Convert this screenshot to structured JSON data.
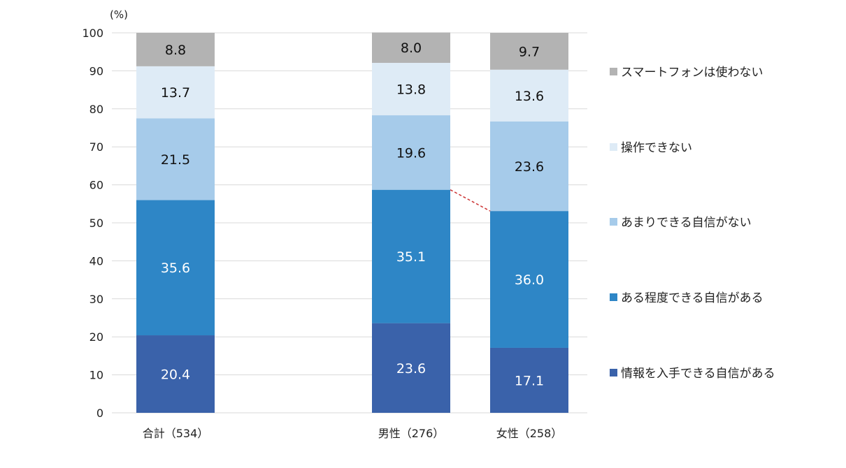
{
  "chart_data": {
    "type": "bar",
    "stacked": true,
    "unit_label": "(%)",
    "ylim": [
      0,
      100
    ],
    "yticks": [
      "0",
      "10",
      "20",
      "30",
      "40",
      "50",
      "60",
      "70",
      "80",
      "90",
      "100"
    ],
    "grid": true,
    "legend_position": "right",
    "categories": [
      "合計（534）",
      "男性（276）",
      "女性（258）"
    ],
    "series": [
      {
        "name": "情報を入手できる自信がある",
        "color": "#3a62aa",
        "label_color": "#ffffff",
        "values": [
          20.4,
          23.6,
          17.1
        ]
      },
      {
        "name": "ある程度できる自信がある",
        "color": "#2e86c6",
        "label_color": "#ffffff",
        "values": [
          35.6,
          35.1,
          36.0
        ]
      },
      {
        "name": "あまりできる自信がない",
        "color": "#a6cbea",
        "label_color": "#111111",
        "values": [
          21.5,
          19.6,
          23.6
        ]
      },
      {
        "name": "操作できない",
        "color": "#deebf6",
        "label_color": "#111111",
        "values": [
          13.7,
          13.8,
          13.6
        ]
      },
      {
        "name": "スマートフォンは使わない",
        "color": "#b3b3b3",
        "label_color": "#111111",
        "values": [
          8.8,
          8.0,
          9.7
        ]
      }
    ],
    "data_labels": [
      [
        "20.4",
        "23.6",
        "17.1"
      ],
      [
        "35.6",
        "35.1",
        "36.0"
      ],
      [
        "21.5",
        "19.6",
        "23.6"
      ],
      [
        "13.7",
        "13.8",
        "13.6"
      ],
      [
        "8.8",
        "8.0",
        "9.7"
      ]
    ],
    "annotation": {
      "type": "dashed-connector",
      "color": "#cc3333",
      "between": [
        "男性（276）",
        "女性（258）"
      ],
      "at_series": "ある程度できる自信がある"
    }
  }
}
